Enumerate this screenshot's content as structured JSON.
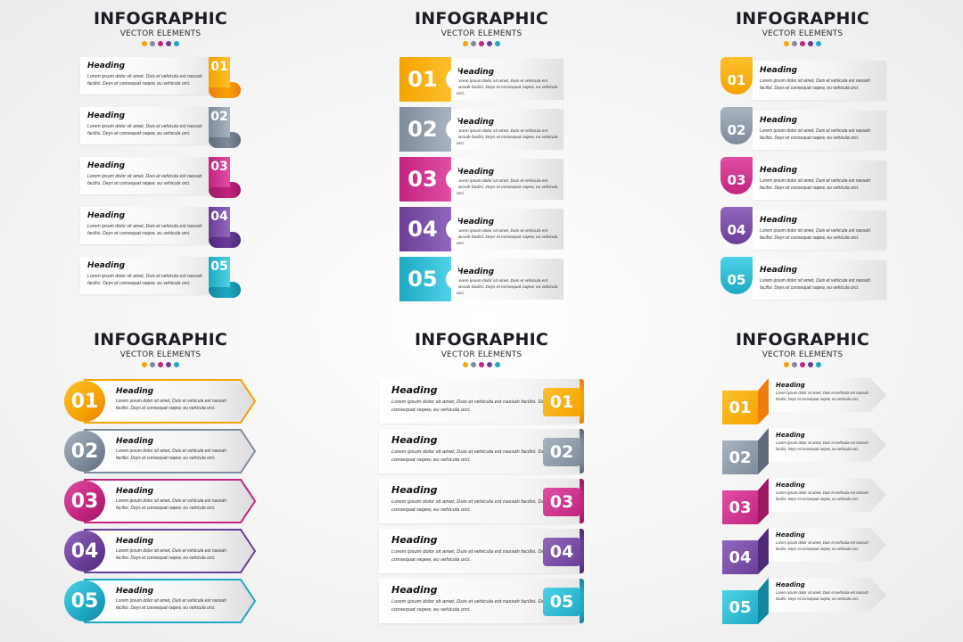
{
  "colors": {
    "c1": "#f5a300",
    "c2": "#7e8b9b",
    "c3": "#c2247f",
    "c4": "#6a3e97",
    "c5": "#1ea9c4",
    "c1_light": "#fbc02d",
    "c2_light": "#a9b3c0",
    "c3_light": "#e04fa4",
    "c4_light": "#9168bd",
    "c5_light": "#4fd2e6",
    "c1_dark": "#ee7d10",
    "c2_dark": "#5f6b7b",
    "c3_dark": "#9c1862",
    "c4_dark": "#4e2a79",
    "c5_dark": "#12879f"
  },
  "panels": [
    {
      "style": "scroll-tab",
      "title": "INFOGRAPHIC",
      "subtitle": "VECTOR ELEMENTS",
      "items": [
        {
          "number": "01",
          "heading": "Heading",
          "text": "Lorem ipsum dolor sit amet, Duis et vehicula est nassah facilisi. Deys et consequat raqew, eu vehicula orci."
        },
        {
          "number": "02",
          "heading": "Heading",
          "text": "Lorem ipsum dolor sit amet, Duis et vehicula est nassah facilisi. Deys et consequat raqew, eu vehicula orci."
        },
        {
          "number": "03",
          "heading": "Heading",
          "text": "Lorem ipsum dolor sit amet, Duis et vehicula est nassah facilisi. Deys et consequat raqew, eu vehicula orci."
        },
        {
          "number": "04",
          "heading": "Heading",
          "text": "Lorem ipsum dolor sit amet, Duis et vehicula est nassah facilisi. Deys et consequat raqew, eu vehicula orci."
        },
        {
          "number": "05",
          "heading": "Heading",
          "text": "Lorem ipsum dolor sit amet, Duis et vehicula est nassah facilisi. Deys et consequat raqew, eu vehicula orci."
        }
      ]
    },
    {
      "style": "notched-block",
      "title": "INFOGRAPHIC",
      "subtitle": "VECTOR ELEMENTS",
      "items": [
        {
          "number": "01",
          "heading": "Heading",
          "text": "Lorem ipsum dolor sit amet, Duis et vehicula est nassah facilisi. Deys et consequat raqew, eu vehicula orci."
        },
        {
          "number": "02",
          "heading": "Heading",
          "text": "Lorem ipsum dolor sit amet, Duis et vehicula est nassah facilisi. Deys et consequat raqew, eu vehicula orci."
        },
        {
          "number": "03",
          "heading": "Heading",
          "text": "Lorem ipsum dolor sit amet, Duis et vehicula est nassah facilisi. Deys et consequat raqew, eu vehicula orci."
        },
        {
          "number": "04",
          "heading": "Heading",
          "text": "Lorem ipsum dolor sit amet, Duis et vehicula est nassah facilisi. Deys et consequat raqew, eu vehicula orci."
        },
        {
          "number": "05",
          "heading": "Heading",
          "text": "Lorem ipsum dolor sit amet, Duis et vehicula est nassah facilisi. Deys et consequat raqew, eu vehicula orci."
        }
      ]
    },
    {
      "style": "bookmark",
      "title": "INFOGRAPHIC",
      "subtitle": "VECTOR ELEMENTS",
      "items": [
        {
          "number": "01",
          "heading": "Heading",
          "text": "Lorem ipsum dolor sit amet, Duis et vehicula est nassah facilisi. Deys et consequat raqew, eu vehicula orci."
        },
        {
          "number": "02",
          "heading": "Heading",
          "text": "Lorem ipsum dolor sit amet, Duis et vehicula est nassah facilisi. Deys et consequat raqew, eu vehicula orci."
        },
        {
          "number": "03",
          "heading": "Heading",
          "text": "Lorem ipsum dolor sit amet, Duis et vehicula est nassah facilisi. Deys et consequat raqew, eu vehicula orci."
        },
        {
          "number": "04",
          "heading": "Heading",
          "text": "Lorem ipsum dolor sit amet, Duis et vehicula est nassah facilisi. Deys et consequat raqew, eu vehicula orci."
        },
        {
          "number": "05",
          "heading": "Heading",
          "text": "Lorem ipsum dolor sit amet, Duis et vehicula est nassah facilisi. Deys et consequat raqew, eu vehicula orci."
        }
      ]
    },
    {
      "style": "circle-arrow",
      "title": "INFOGRAPHIC",
      "subtitle": "VECTOR ELEMENTS",
      "items": [
        {
          "number": "01",
          "heading": "Heading",
          "text": "Lorem ipsum dolor sit amet, Duis et vehicula est nassah facilisi. Deys et consequat raqew, eu vehicula orci."
        },
        {
          "number": "02",
          "heading": "Heading",
          "text": "Lorem ipsum dolor sit amet, Duis et vehicula est nassah facilisi. Deys et consequat raqew, eu vehicula orci."
        },
        {
          "number": "03",
          "heading": "Heading",
          "text": "Lorem ipsum dolor sit amet, Duis et vehicula est nassah facilisi. Deys et consequat raqew, eu vehicula orci."
        },
        {
          "number": "04",
          "heading": "Heading",
          "text": "Lorem ipsum dolor sit amet, Duis et vehicula est nassah facilisi. Deys et consequat raqew, eu vehicula orci."
        },
        {
          "number": "05",
          "heading": "Heading",
          "text": "Lorem ipsum dolor sit amet, Duis et vehicula est nassah facilisi. Deys et consequat raqew, eu vehicula orci."
        }
      ]
    },
    {
      "style": "ribbon-badge",
      "title": "INFOGRAPHIC",
      "subtitle": "VECTOR ELEMENTS",
      "items": [
        {
          "number": "01",
          "heading": "Heading",
          "text": "Lorem ipsum dolor sit amet, Duis et vehicula est nassah facilisi. Deys et consequat raqew, eu vehicula orci."
        },
        {
          "number": "02",
          "heading": "Heading",
          "text": "Lorem ipsum dolor sit amet, Duis et vehicula est nassah facilisi. Deys et consequat raqew, eu vehicula orci."
        },
        {
          "number": "03",
          "heading": "Heading",
          "text": "Lorem ipsum dolor sit amet, Duis et vehicula est nassah facilisi. Deys et consequat raqew, eu vehicula orci."
        },
        {
          "number": "04",
          "heading": "Heading",
          "text": "Lorem ipsum dolor sit amet, Duis et vehicula est nassah facilisi. Deys et consequat raqew, eu vehicula orci."
        },
        {
          "number": "05",
          "heading": "Heading",
          "text": "Lorem ipsum dolor sit amet, Duis et vehicula est nassah facilisi. Deys et consequat raqew, eu vehicula orci."
        }
      ]
    },
    {
      "style": "cube-arrow",
      "title": "INFOGRAPHIC",
      "subtitle": "VECTOR ELEMENTS",
      "items": [
        {
          "number": "01",
          "heading": "Heading",
          "text": "Lorem ipsum dolor sit amet, Duis et vehicula est nassah facilisi. Deys et consequat raqew, eu vehicula orci."
        },
        {
          "number": "02",
          "heading": "Heading",
          "text": "Lorem ipsum dolor sit amet, Duis et vehicula est nassah facilisi. Deys et consequat raqew, eu vehicula orci."
        },
        {
          "number": "03",
          "heading": "Heading",
          "text": "Lorem ipsum dolor sit amet, Duis et vehicula est nassah facilisi. Deys et consequat raqew, eu vehicula orci."
        },
        {
          "number": "04",
          "heading": "Heading",
          "text": "Lorem ipsum dolor sit amet, Duis et vehicula est nassah facilisi. Deys et consequat raqew, eu vehicula orci."
        },
        {
          "number": "05",
          "heading": "Heading",
          "text": "Lorem ipsum dolor sit amet, Duis et vehicula est nassah facilisi. Deys et consequat raqew, eu vehicula orci."
        }
      ]
    }
  ]
}
